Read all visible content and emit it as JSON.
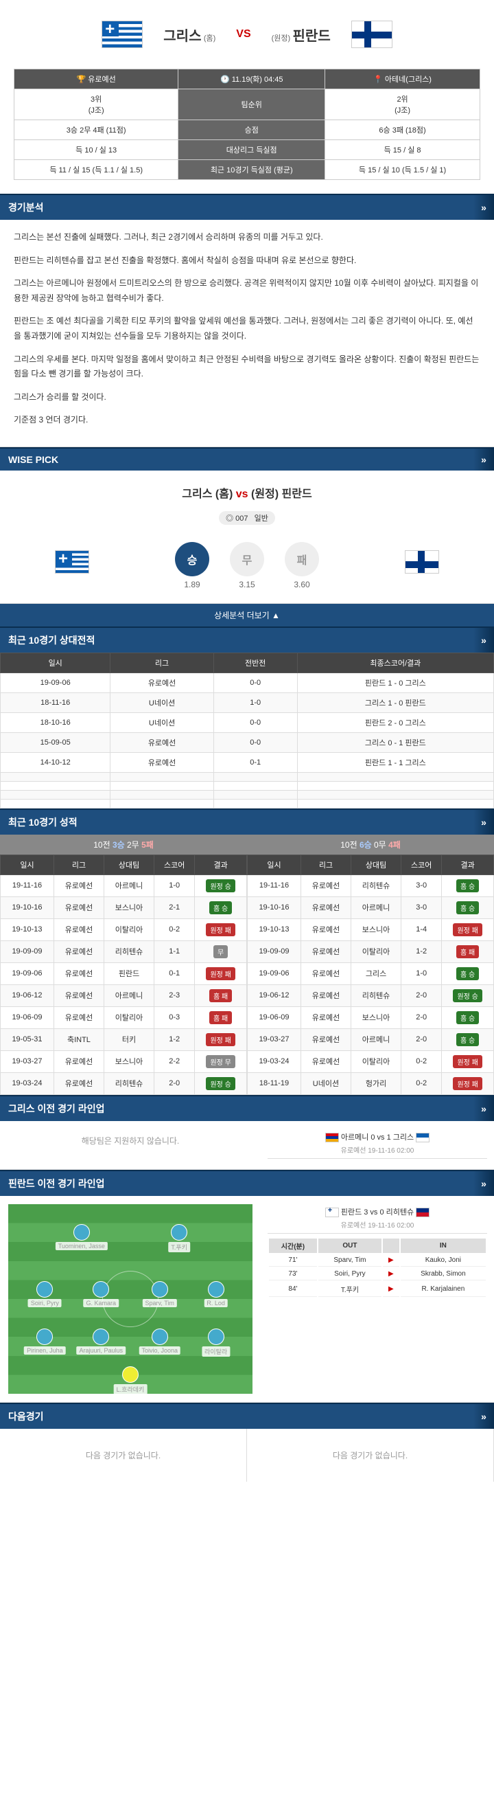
{
  "header": {
    "home": "그리스",
    "home_sub": "(홈)",
    "vs": "VS",
    "away_sub": "(원정)",
    "away": "핀란드"
  },
  "info": {
    "league": "유로예선",
    "datetime": "11.19(화) 04:45",
    "venue": "아테네(그리스)",
    "left_rank": "3위",
    "left_group": "(J조)",
    "rank_label": "팀순위",
    "right_rank": "2위",
    "right_group": "(J조)",
    "left_record": "3승 2무 4패 (11점)",
    "record_label": "승점",
    "right_record": "6승 3패 (18점)",
    "left_goals": "득 10 / 실 13",
    "goals_label": "대상리그 득실점",
    "right_goals": "득 15 / 실 8",
    "left_recent": "득 11 / 실 15 (득 1.1 / 실 1.5)",
    "recent_label": "최근 10경기 득실점 (평균)",
    "right_recent": "득 15 / 실 10 (득 1.5 / 실 1)"
  },
  "analysis": {
    "title": "경기분석",
    "p1": "그리스는 본선 진출에 실패했다. 그러나, 최근 2경기에서 승리하며 유종의 미를 거두고 있다.",
    "p2": "핀란드는 리히텐슈를 잡고 본선 진출을 확정했다. 홈에서 착실히 승점을 따내며 유로 본선으로 향한다.",
    "p3": "그리스는 아르메니아 원정에서 드미트리오스의 한 방으로 승리했다. 공격은 위력적이지 않지만 10월 이후 수비력이 살아났다. 피지컬을 이용한 제공권 장악에 능하고 협력수비가 좋다.",
    "p4": "핀란드는 조 예선 최다골을 기록한 티모 푸키의 활약을 앞세워 예선을 통과했다. 그러나, 원정에서는 그리 좋은 경기력이 아니다. 또, 예선을 통과했기에 굳이 지쳐있는 선수들을 모두 기용하지는 않을 것이다.",
    "p5": "그리스의 우세를 본다. 마지막 일정을 홈에서 맞이하고 최근 안정된 수비력을 바탕으로 경기력도 올라온 상황이다. 진출이 확정된 핀란드는 힘을 다소 뺀 경기를 할 가능성이 크다.",
    "p6": "그리스가 승리를 할 것이다.",
    "p7": "기준점 3 언더 경기다."
  },
  "wise": {
    "section": "WISE PICK",
    "title_pre": "그리스 (홈)",
    "title_vs": "vs",
    "title_post": "(원정) 핀란드",
    "tag_num": "007",
    "tag_txt": "일반",
    "win": "승",
    "draw": "무",
    "lose": "패",
    "win_odds": "1.89",
    "draw_odds": "3.15",
    "lose_odds": "3.60",
    "more": "상세분석 더보기 ▲"
  },
  "h2h": {
    "title": "최근 10경기 상대전적",
    "cols": [
      "일시",
      "리그",
      "전반전",
      "최종스코어/결과"
    ],
    "rows": [
      [
        "19-09-06",
        "유로예선",
        "0-0",
        "핀란드 1 - 0 그리스"
      ],
      [
        "18-11-16",
        "U네이션",
        "1-0",
        "그리스 1 - 0 핀란드"
      ],
      [
        "18-10-16",
        "U네이션",
        "0-0",
        "핀란드 2 - 0 그리스"
      ],
      [
        "15-09-05",
        "유로예선",
        "0-0",
        "그리스 0 - 1 핀란드"
      ],
      [
        "14-10-12",
        "유로예선",
        "0-1",
        "핀란드 1 - 1 그리스"
      ]
    ]
  },
  "recent": {
    "title": "최근 10경기 성적",
    "left_head_pre": "10전 ",
    "left_head_w": "3승",
    "left_head_d": " 2무 ",
    "left_head_l": "5패",
    "right_head_pre": "10전 ",
    "right_head_w": "6승",
    "right_head_d": " 0무 ",
    "right_head_l": "4패",
    "cols": [
      "일시",
      "리그",
      "상대팀",
      "스코어",
      "결과"
    ],
    "left": [
      [
        "19-11-16",
        "유로예선",
        "아르메니",
        "1-0",
        "원정 승",
        "win"
      ],
      [
        "19-10-16",
        "유로예선",
        "보스니아",
        "2-1",
        "홈 승",
        "win"
      ],
      [
        "19-10-13",
        "유로예선",
        "이탈리아",
        "0-2",
        "원정 패",
        "lose"
      ],
      [
        "19-09-09",
        "유로예선",
        "리히텐슈",
        "1-1",
        "무",
        "draw"
      ],
      [
        "19-09-06",
        "유로예선",
        "핀란드",
        "0-1",
        "원정 패",
        "lose"
      ],
      [
        "19-06-12",
        "유로예선",
        "아르메니",
        "2-3",
        "홈 패",
        "lose"
      ],
      [
        "19-06-09",
        "유로예선",
        "이탈리아",
        "0-3",
        "홈 패",
        "lose"
      ],
      [
        "19-05-31",
        "축INTL",
        "터키",
        "1-2",
        "원정 패",
        "lose"
      ],
      [
        "19-03-27",
        "유로예선",
        "보스니아",
        "2-2",
        "원정 무",
        "draw"
      ],
      [
        "19-03-24",
        "유로예선",
        "리히텐슈",
        "2-0",
        "원정 승",
        "win"
      ]
    ],
    "right": [
      [
        "19-11-16",
        "유로예선",
        "리히텐슈",
        "3-0",
        "홈 승",
        "win"
      ],
      [
        "19-10-16",
        "유로예선",
        "아르메니",
        "3-0",
        "홈 승",
        "win"
      ],
      [
        "19-10-13",
        "유로예선",
        "보스니아",
        "1-4",
        "원정 패",
        "lose"
      ],
      [
        "19-09-09",
        "유로예선",
        "이탈리아",
        "1-2",
        "홈 패",
        "lose"
      ],
      [
        "19-09-06",
        "유로예선",
        "그리스",
        "1-0",
        "홈 승",
        "win"
      ],
      [
        "19-06-12",
        "유로예선",
        "리히텐슈",
        "2-0",
        "원정 승",
        "win"
      ],
      [
        "19-06-09",
        "유로예선",
        "보스니아",
        "2-0",
        "홈 승",
        "win"
      ],
      [
        "19-03-27",
        "유로예선",
        "아르메니",
        "2-0",
        "홈 승",
        "win"
      ],
      [
        "19-03-24",
        "유로예선",
        "이탈리아",
        "0-2",
        "원정 패",
        "lose"
      ],
      [
        "18-11-19",
        "U네이션",
        "헝가리",
        "0-2",
        "원정 패",
        "lose"
      ]
    ]
  },
  "lineup_gr": {
    "title": "그리스 이전 경기 라인업",
    "empty": "해당팀은 지원하지 않습니다.",
    "match": "아르메니 0 vs 1 그리스",
    "date": "유로예선 19-11-16 02:00"
  },
  "lineup_fi": {
    "title": "핀란드 이전 경기 라인업",
    "match": "핀란드 3 vs 0 리히텐슈",
    "date": "유로예선 19-11-16 02:00",
    "players": {
      "gk": "L.흐라데키",
      "d1": "Pirinen, Juha",
      "d2": "Arajuuri, Paulus",
      "d3": "Toivio, Joona",
      "d4": "라이탈라",
      "m1": "Soiri, Pyry",
      "m2": "G. Kamara",
      "m3": "Sparv, Tim",
      "m4": "R. Lod",
      "f1": "Tuominen, Jasse",
      "f2": "T.푸키"
    },
    "subs_head": [
      "시간(분)",
      "OUT",
      "",
      "IN"
    ],
    "subs": [
      [
        "71'",
        "Sparv, Tim",
        "▶",
        "Kauko, Joni"
      ],
      [
        "73'",
        "Soiri, Pyry",
        "▶",
        "Skrabb, Simon"
      ],
      [
        "84'",
        "T.푸키",
        "▶",
        "R. Karjalainen"
      ]
    ]
  },
  "next": {
    "title": "다음경기",
    "empty": "다음 경기가 없습니다."
  }
}
